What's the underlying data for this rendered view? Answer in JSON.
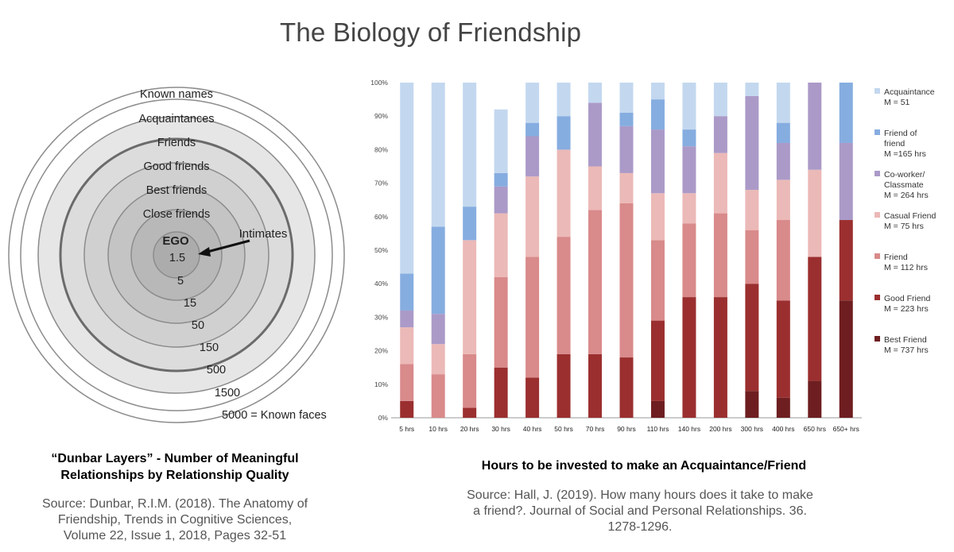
{
  "title": "The Biology of Friendship",
  "dunbar": {
    "ring_labels": [
      "Known names",
      "Acquaintances",
      "Friends",
      "Good friends",
      "Best friends",
      "Close friends"
    ],
    "ego": "EGO",
    "intimates_label": "Intimates",
    "numbers": [
      "1.5",
      "5",
      "15",
      "50",
      "150",
      "500",
      "1500",
      "5000 = Known faces"
    ],
    "caption_line1": "“Dunbar Layers” - Number of Meaningful",
    "caption_line2": "Relationships by Relationship Quality",
    "source_line1": "Source: Dunbar, R.I.M. (2018). The Anatomy of",
    "source_line2": "Friendship, Trends in Cognitive Sciences,",
    "source_line3": "Volume 22, Issue 1, 2018, Pages 32-51"
  },
  "bar_caption": "Hours to be invested to make an Acquaintance/Friend",
  "bar_source_line1": "Source: Hall, J. (2019). How many hours does it take to make",
  "bar_source_line2": "a friend?. Journal of Social and Personal Relationships. 36.",
  "bar_source_line3": "1278-1296.",
  "chart_data": {
    "type": "bar",
    "stacked": true,
    "categories": [
      "5 hrs",
      "10 hrs",
      "20 hrs",
      "30 hrs",
      "40 hrs",
      "50 hrs",
      "70 hrs",
      "90 hrs",
      "110 hrs",
      "140 hrs",
      "200 hrs",
      "300 hrs",
      "400 hrs",
      "650 hrs",
      "650+ hrs"
    ],
    "y_ticks": [
      "0%",
      "10%",
      "20%",
      "30%",
      "40%",
      "50%",
      "60%",
      "70%",
      "80%",
      "90%",
      "100%"
    ],
    "ylim": [
      0,
      100
    ],
    "legend_position": "right",
    "series": [
      {
        "name": "Best Friend",
        "sub": "M = 737 hrs",
        "color": "#6e1e20",
        "values": [
          0,
          0,
          0,
          0,
          0,
          0,
          0,
          0,
          5,
          0,
          0,
          8,
          6,
          11,
          35
        ]
      },
      {
        "name": "Good Friend",
        "sub": "M = 223 hrs",
        "color": "#9b2f2f",
        "values": [
          5,
          0,
          3,
          15,
          12,
          19,
          19,
          18,
          24,
          36,
          36,
          32,
          29,
          37,
          24
        ]
      },
      {
        "name": "Friend",
        "sub": "M = 112 hrs",
        "color": "#d98a8a",
        "values": [
          11,
          13,
          16,
          27,
          36,
          35,
          43,
          46,
          24,
          22,
          25,
          16,
          24,
          0,
          0
        ]
      },
      {
        "name": "Casual Friend",
        "sub": "M = 75 hrs",
        "color": "#ebb9b7",
        "values": [
          11,
          9,
          34,
          19,
          24,
          26,
          13,
          9,
          14,
          9,
          18,
          12,
          12,
          26,
          0
        ]
      },
      {
        "name": "Co-worker/ Classmate",
        "sub": "M = 264 hrs",
        "color": "#ab9ac8",
        "values": [
          5,
          9,
          0,
          8,
          12,
          0,
          19,
          14,
          19,
          14,
          11,
          28,
          11,
          26,
          23
        ]
      },
      {
        "name": "Friend of friend",
        "sub": "M =165 hrs",
        "color": "#86ade0",
        "values": [
          11,
          26,
          10,
          4,
          4,
          10,
          0,
          4,
          9,
          5,
          0,
          0,
          6,
          0,
          18
        ]
      },
      {
        "name": "Acquaintance",
        "sub": "M = 51",
        "color": "#c3d8ef",
        "values": [
          57,
          43,
          37,
          19,
          12,
          10,
          6,
          9,
          5,
          14,
          10,
          4,
          12,
          0,
          0
        ]
      }
    ]
  }
}
